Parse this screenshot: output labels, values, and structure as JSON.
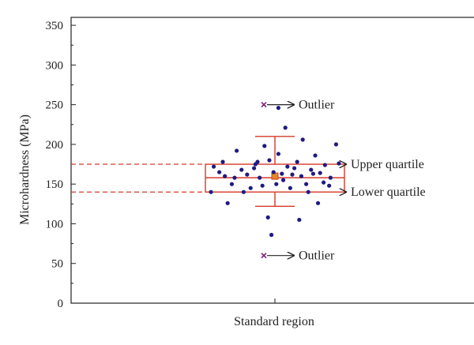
{
  "chart_data": {
    "type": "scatter",
    "title": "",
    "xlabel": "Standard region",
    "ylabel": "Microhardness (MPa)",
    "ylim": [
      0,
      360
    ],
    "yticks": [
      0,
      50,
      100,
      150,
      200,
      250,
      300,
      350
    ],
    "grid": false,
    "categories": [
      "Standard region"
    ],
    "box": {
      "q1": 140,
      "q3": 175,
      "median": 158,
      "mean": 160,
      "whisker_low": 122,
      "whisker_high": 210,
      "outliers": [
        60,
        250
      ]
    },
    "points": [
      {
        "x": -0.88,
        "y": 172
      },
      {
        "x": -0.8,
        "y": 165
      },
      {
        "x": -0.72,
        "y": 160
      },
      {
        "x": -0.62,
        "y": 150
      },
      {
        "x": -0.55,
        "y": 192
      },
      {
        "x": -0.48,
        "y": 168
      },
      {
        "x": -0.4,
        "y": 162
      },
      {
        "x": -0.35,
        "y": 145
      },
      {
        "x": -0.28,
        "y": 175
      },
      {
        "x": -0.22,
        "y": 158
      },
      {
        "x": -0.15,
        "y": 198
      },
      {
        "x": -0.08,
        "y": 180
      },
      {
        "x": -0.02,
        "y": 165
      },
      {
        "x": 0.05,
        "y": 188
      },
      {
        "x": 0.12,
        "y": 155
      },
      {
        "x": 0.18,
        "y": 172
      },
      {
        "x": 0.25,
        "y": 162
      },
      {
        "x": 0.32,
        "y": 178
      },
      {
        "x": 0.38,
        "y": 160
      },
      {
        "x": 0.45,
        "y": 150
      },
      {
        "x": 0.52,
        "y": 168
      },
      {
        "x": 0.58,
        "y": 186
      },
      {
        "x": 0.65,
        "y": 164
      },
      {
        "x": 0.72,
        "y": 174
      },
      {
        "x": 0.8,
        "y": 158
      },
      {
        "x": 0.88,
        "y": 200
      },
      {
        "x": -0.68,
        "y": 126
      },
      {
        "x": -0.18,
        "y": 148
      },
      {
        "x": 0.15,
        "y": 221
      },
      {
        "x": 0.4,
        "y": 206
      },
      {
        "x": 0.62,
        "y": 126
      },
      {
        "x": -0.1,
        "y": 108
      },
      {
        "x": 0.35,
        "y": 105
      },
      {
        "x": -0.05,
        "y": 86
      },
      {
        "x": 0.02,
        "y": 150
      },
      {
        "x": -0.45,
        "y": 140
      },
      {
        "x": 0.48,
        "y": 140
      },
      {
        "x": 0.22,
        "y": 145
      },
      {
        "x": -0.3,
        "y": 170
      },
      {
        "x": 0.7,
        "y": 152
      },
      {
        "x": -0.92,
        "y": 140
      },
      {
        "x": 0.92,
        "y": 176
      },
      {
        "x": -0.58,
        "y": 158
      },
      {
        "x": 0.55,
        "y": 163
      },
      {
        "x": 0.1,
        "y": 163
      },
      {
        "x": -0.25,
        "y": 178
      },
      {
        "x": 0.28,
        "y": 170
      },
      {
        "x": -0.75,
        "y": 178
      },
      {
        "x": 0.05,
        "y": 246
      },
      {
        "x": 0.78,
        "y": 148
      }
    ],
    "reference_lines": [
      {
        "label": "Upper quartile",
        "y": 175
      },
      {
        "label": "Lower quartile",
        "y": 140
      }
    ],
    "annotations": [
      {
        "text": "Outlier",
        "y": 250
      },
      {
        "text": "Outlier",
        "y": 60
      },
      {
        "text": "Upper quartile",
        "y": 175
      },
      {
        "text": "Lower quartile",
        "y": 140
      }
    ],
    "colors": {
      "points": "#1f1a80",
      "box": "#d63a2a",
      "reference": "#d63a2a",
      "outlier_marker": "#7a1f7a",
      "axis": "#222222"
    }
  }
}
